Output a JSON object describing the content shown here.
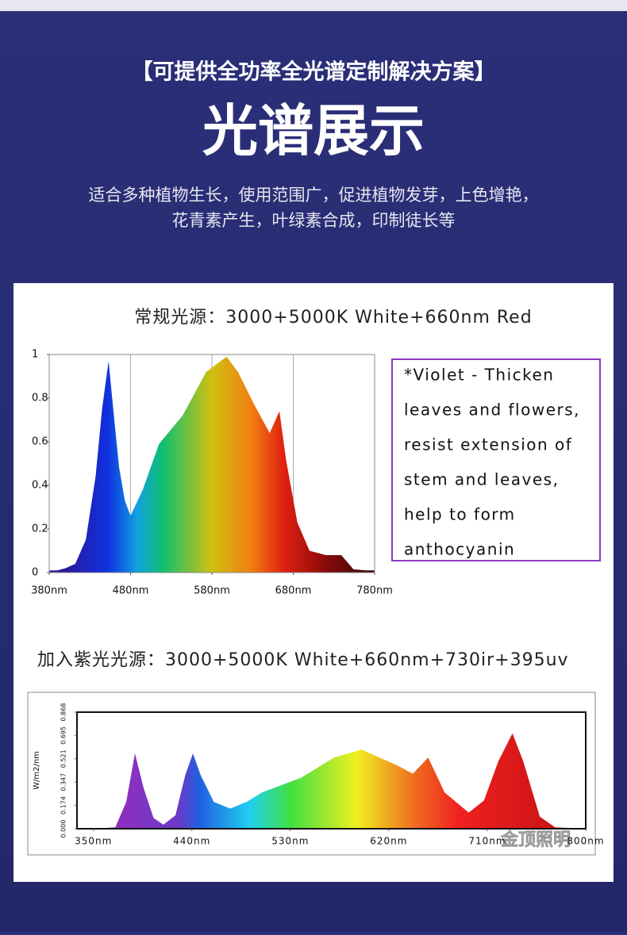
{
  "header": {
    "tagline": "【可提供全功率全光谱定制解决方案】",
    "title": "光谱展示",
    "subtitle": [
      "适合多种植物生长，使用范围广，促进植物发芽，上色增艳，",
      "花青素产生，叶绿素合成，印制徒长等"
    ]
  },
  "watermark": "金顶照明",
  "chart_data": [
    {
      "type": "area",
      "title": "常规光源：3000+5000K White+660nm Red",
      "grid": true,
      "x": [
        380,
        390,
        400,
        412,
        425,
        437,
        445,
        453,
        460,
        466,
        473,
        480,
        495,
        515,
        544,
        573,
        598,
        612,
        632,
        651,
        663,
        671,
        685,
        700,
        720,
        739,
        754,
        770,
        780
      ],
      "values": [
        0.01,
        0.01,
        0.02,
        0.04,
        0.15,
        0.44,
        0.75,
        0.97,
        0.7,
        0.48,
        0.33,
        0.26,
        0.38,
        0.59,
        0.72,
        0.92,
        0.99,
        0.92,
        0.77,
        0.64,
        0.74,
        0.52,
        0.23,
        0.1,
        0.08,
        0.08,
        0.015,
        0.01,
        0.01
      ],
      "xlim": [
        380,
        780
      ],
      "ylim": [
        0,
        1
      ],
      "xticks": [
        {
          "value": 380,
          "label": "380nm"
        },
        {
          "value": 480,
          "label": "480nm"
        },
        {
          "value": 580,
          "label": "580nm"
        },
        {
          "value": 680,
          "label": "680nm"
        },
        {
          "value": 780,
          "label": "780nm"
        }
      ],
      "yticks": [
        0,
        0.2,
        0.4,
        0.6,
        0.8,
        1
      ],
      "annotation": [
        "*Violet - Thicken",
        "leaves and flowers,",
        "resist extension of",
        "stem and leaves,",
        "help to form",
        "anthocyanin"
      ]
    },
    {
      "type": "area",
      "title": "加入紫光光源：3000+5000K White+660nm+730ir+395uv",
      "grid": false,
      "ylabel": "W/m2/nm",
      "x": [
        350,
        370,
        380,
        388,
        396,
        405,
        414,
        425,
        434,
        441,
        448,
        460,
        475,
        490,
        504,
        540,
        570,
        595,
        628,
        642,
        656,
        671,
        693,
        707,
        720,
        733,
        743,
        758,
        772,
        800
      ],
      "values": [
        0,
        0.01,
        0.2,
        0.56,
        0.3,
        0.08,
        0.03,
        0.1,
        0.4,
        0.56,
        0.4,
        0.2,
        0.15,
        0.2,
        0.27,
        0.38,
        0.53,
        0.59,
        0.47,
        0.41,
        0.53,
        0.27,
        0.12,
        0.21,
        0.5,
        0.71,
        0.5,
        0.09,
        0.01,
        0
      ],
      "xlim": [
        335,
        800
      ],
      "ylim": [
        0,
        0.868
      ],
      "xticks": [
        {
          "value": 350,
          "label": "350nm"
        },
        {
          "value": 440,
          "label": "440nm"
        },
        {
          "value": 530,
          "label": "530nm"
        },
        {
          "value": 620,
          "label": "620nm"
        },
        {
          "value": 710,
          "label": "710nm"
        },
        {
          "value": 800,
          "label": "800nm"
        }
      ],
      "yticks": [
        {
          "value": 0,
          "label": "0.000"
        },
        0.174,
        0.347,
        0.521,
        0.695,
        0.868
      ]
    }
  ]
}
